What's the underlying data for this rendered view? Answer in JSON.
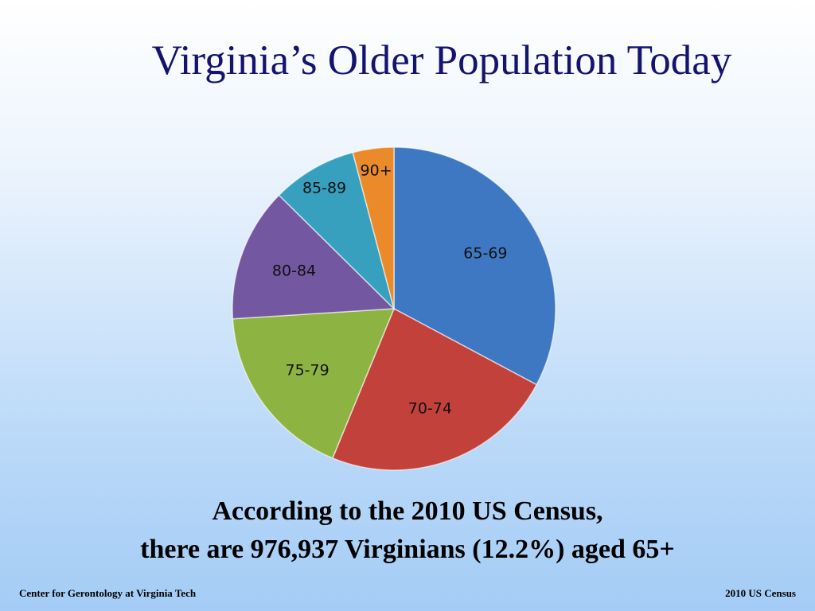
{
  "chart_data": {
    "type": "pie",
    "title": "Virginia’s Older Population Today",
    "categories": [
      "65-69",
      "70-74",
      "75-79",
      "80-84",
      "85-89",
      "90+"
    ],
    "values": [
      32.8,
      23.4,
      17.8,
      13.4,
      8.5,
      4.1
    ],
    "colors": [
      "#3f78c2",
      "#c2413b",
      "#8db442",
      "#7357a0",
      "#37a0bf",
      "#ea8a2b"
    ],
    "caption": [
      "According to  the 2010 US Census,",
      "there are 976,937 Virginians (12.2%) aged 65+"
    ],
    "footer_left": "Center for Gerontology at Virginia Tech",
    "footer_right": "2010 US Census"
  }
}
